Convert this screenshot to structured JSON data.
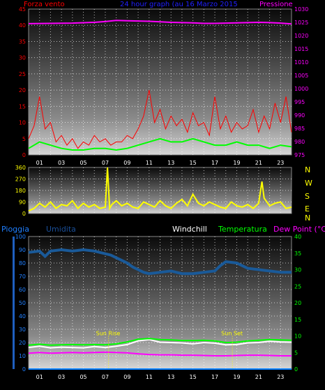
{
  "header": {
    "left_label": "Forza vento",
    "title": "24 hour graph (au 16 Marzo 2015",
    "right_label": "Pressione"
  },
  "compass": [
    "N",
    "W",
    "S",
    "E",
    "N"
  ],
  "bottom_header": {
    "pioggia": "Pioggia",
    "umidita": "Umidita",
    "windchill": "Windchill",
    "temperatura": "Temperatura",
    "dew_point": "Dew Point (°C)"
  },
  "sun_labels": {
    "rise": "Sun Rise",
    "set": "Sun Set"
  },
  "x_ticks": [
    "01",
    "03",
    "05",
    "07",
    "09",
    "11",
    "13",
    "15",
    "17",
    "19",
    "21",
    "23"
  ],
  "colors": {
    "wind": "#ff0000",
    "wind_avg": "#00ff00",
    "pressure": "#ff00ff",
    "direction": "#ffff00",
    "humidity": "#1a5a99",
    "temperature": "#00ff00",
    "windchill": "#ffffff",
    "dew_point": "#ff00ff",
    "rain": "#0080ff",
    "grid": "#ffffff"
  },
  "chart_data": [
    {
      "type": "line",
      "name": "wind-pressure",
      "ylim_left": [
        0,
        45
      ],
      "left_ticks": [
        0,
        5,
        10,
        15,
        20,
        25,
        30,
        35,
        40,
        45
      ],
      "ylim_right": [
        975,
        1030
      ],
      "right_ticks": [
        975,
        980,
        985,
        990,
        995,
        1000,
        1005,
        1010,
        1015,
        1020,
        1025,
        1030
      ],
      "xlim": [
        0,
        24
      ],
      "series": [
        {
          "key": "pressure",
          "axis": "right",
          "x": [
            0,
            2,
            4,
            6,
            7,
            8,
            9,
            10,
            11,
            12,
            13,
            14,
            15,
            16,
            17,
            18,
            19,
            20,
            21,
            22,
            23,
            24
          ],
          "values": [
            1024.5,
            1024.6,
            1024.7,
            1025.0,
            1025.3,
            1025.7,
            1025.6,
            1025.5,
            1025.4,
            1025.2,
            1025.0,
            1024.9,
            1024.8,
            1024.6,
            1024.6,
            1024.7,
            1024.8,
            1024.9,
            1025.0,
            1024.9,
            1024.7,
            1024.4
          ]
        },
        {
          "key": "wind_avg",
          "axis": "left",
          "x": [
            0,
            1,
            2,
            3,
            4,
            5,
            6,
            7,
            8,
            9,
            10,
            11,
            12,
            13,
            14,
            15,
            16,
            17,
            18,
            19,
            20,
            21,
            22,
            23,
            24
          ],
          "values": [
            2,
            4,
            3,
            2,
            1.5,
            1.5,
            2,
            2,
            1.5,
            2,
            3,
            4,
            5,
            4,
            4,
            5,
            4,
            3,
            3,
            4,
            3,
            3,
            2,
            3,
            2.5
          ]
        },
        {
          "key": "wind",
          "axis": "left",
          "x": [
            0,
            0.5,
            1,
            1.5,
            2,
            2.5,
            3,
            3.5,
            4,
            4.5,
            5,
            5.5,
            6,
            6.5,
            7,
            7.5,
            8,
            8.5,
            9,
            9.5,
            10,
            10.5,
            11,
            11.5,
            12,
            12.5,
            13,
            13.5,
            14,
            14.5,
            15,
            15.5,
            16,
            16.5,
            17,
            17.5,
            18,
            18.5,
            19,
            19.5,
            20,
            20.5,
            21,
            21.5,
            22,
            22.5,
            23,
            23.5,
            24
          ],
          "values": [
            5,
            9,
            18,
            8,
            10,
            4,
            6,
            3,
            5,
            2,
            4,
            3,
            6,
            4,
            5,
            3,
            4,
            4,
            6,
            5,
            8,
            12,
            20,
            10,
            14,
            8,
            12,
            9,
            11,
            7,
            13,
            9,
            10,
            6,
            18,
            8,
            12,
            7,
            10,
            8,
            9,
            14,
            7,
            12,
            8,
            16,
            10,
            18,
            7
          ]
        }
      ]
    },
    {
      "type": "line",
      "name": "wind-direction",
      "ylim": [
        0,
        360
      ],
      "y_ticks": [
        0,
        90,
        180,
        270,
        360
      ],
      "xlim": [
        0,
        24
      ],
      "series": [
        {
          "key": "direction",
          "x": [
            0,
            0.5,
            1,
            1.5,
            2,
            2.5,
            3,
            3.5,
            4,
            4.5,
            5,
            5.5,
            6,
            6.5,
            7,
            7.2,
            7.4,
            7.6,
            8,
            8.5,
            9,
            9.5,
            10,
            10.5,
            11,
            11.5,
            12,
            12.5,
            13,
            13.5,
            14,
            14.5,
            15,
            15.5,
            16,
            16.5,
            17,
            17.5,
            18,
            18.5,
            19,
            19.5,
            20,
            20.5,
            21,
            21.3,
            21.5,
            22,
            22.5,
            23,
            23.5,
            24
          ],
          "values": [
            20,
            40,
            80,
            50,
            90,
            40,
            70,
            60,
            100,
            40,
            80,
            50,
            70,
            40,
            50,
            360,
            40,
            70,
            100,
            60,
            80,
            50,
            40,
            90,
            70,
            50,
            100,
            60,
            40,
            80,
            110,
            60,
            150,
            80,
            60,
            90,
            70,
            50,
            40,
            90,
            60,
            50,
            70,
            40,
            80,
            250,
            120,
            60,
            80,
            90,
            40,
            50
          ]
        }
      ]
    },
    {
      "type": "line",
      "name": "weather",
      "ylim_left": [
        0,
        100
      ],
      "left_ticks": [
        0,
        10,
        20,
        30,
        40,
        50,
        60,
        70,
        80,
        90,
        100
      ],
      "ylim_right": [
        0,
        40
      ],
      "right_ticks": [
        0,
        5,
        10,
        15,
        20,
        25,
        30,
        35,
        40
      ],
      "xlim": [
        0,
        24
      ],
      "series": [
        {
          "key": "humidity",
          "axis": "left",
          "x": [
            0,
            1,
            1.5,
            2,
            3,
            4,
            5,
            6,
            7,
            7.5,
            8,
            9,
            9.5,
            10,
            10.5,
            11,
            12,
            13,
            14,
            15,
            16,
            17,
            17.5,
            18,
            19,
            19.5,
            20,
            21,
            22,
            23,
            24
          ],
          "values": [
            88,
            89,
            85,
            89,
            90,
            89,
            90,
            89,
            87,
            86,
            84,
            80,
            77,
            75,
            73,
            72,
            73,
            74,
            72,
            72,
            73,
            74,
            78,
            81,
            80,
            78,
            76,
            75,
            74,
            73,
            73
          ]
        },
        {
          "key": "temperature",
          "axis": "right",
          "x": [
            0,
            1,
            2,
            3,
            4,
            5,
            6,
            7,
            8,
            9,
            10,
            11,
            12,
            13,
            14,
            15,
            16,
            17,
            18,
            19,
            20,
            21,
            22,
            23,
            24
          ],
          "values": [
            7.2,
            7.5,
            7.2,
            7.3,
            7.4,
            7.3,
            7.4,
            7.3,
            7.6,
            8.2,
            9.0,
            9.2,
            8.9,
            8.8,
            8.6,
            8.6,
            8.7,
            8.5,
            8.0,
            8.1,
            8.5,
            8.7,
            8.9,
            8.8,
            8.7
          ]
        },
        {
          "key": "windchill",
          "axis": "right",
          "x": [
            0,
            1,
            2,
            3,
            4,
            5,
            6,
            7,
            8,
            9,
            10,
            11,
            12,
            13,
            14,
            15,
            16,
            17,
            18,
            19,
            20,
            21,
            22,
            23,
            24
          ],
          "values": [
            6.5,
            6.9,
            6.4,
            6.6,
            6.5,
            6.4,
            6.8,
            6.5,
            6.9,
            7.4,
            8.5,
            8.9,
            8.1,
            8.0,
            7.9,
            7.6,
            8.0,
            7.8,
            7.3,
            7.4,
            7.9,
            8.0,
            8.4,
            8.2,
            8.1
          ]
        },
        {
          "key": "dew_point",
          "axis": "right",
          "x": [
            0,
            1,
            2,
            3,
            4,
            5,
            6,
            7,
            8,
            9,
            10,
            11,
            12,
            13,
            14,
            15,
            16,
            17,
            18,
            19,
            20,
            21,
            22,
            23,
            24
          ],
          "values": [
            4.8,
            5.0,
            4.8,
            4.9,
            5.0,
            4.9,
            5.0,
            5.1,
            5.0,
            4.9,
            4.6,
            4.4,
            4.3,
            4.3,
            4.2,
            4.2,
            4.1,
            4.0,
            4.0,
            4.1,
            4.2,
            4.2,
            4.1,
            4.0,
            4.0
          ]
        },
        {
          "key": "rain",
          "axis": "left",
          "x": [
            0,
            24
          ],
          "values": [
            0,
            0
          ]
        }
      ],
      "sun_rise_x": 7.3,
      "sun_set_x": 18.6
    }
  ]
}
